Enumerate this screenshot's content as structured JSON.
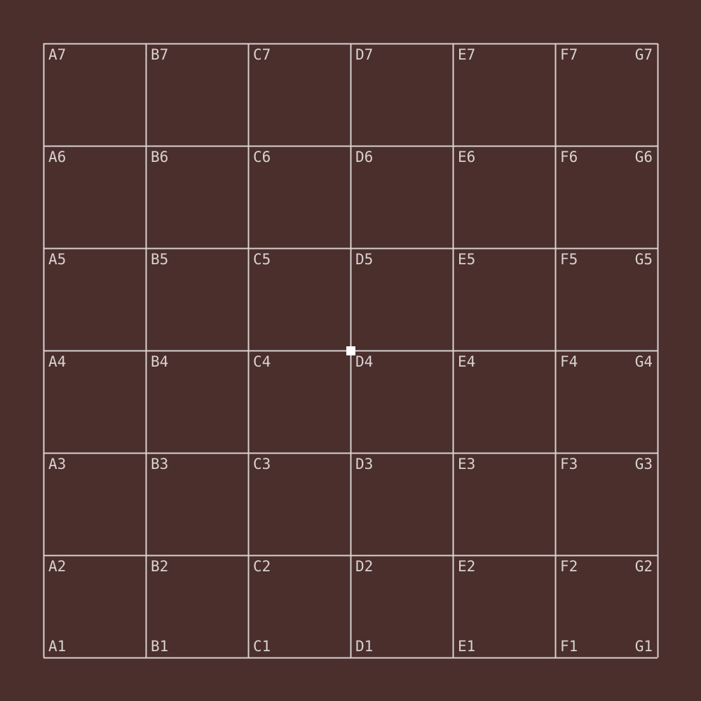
{
  "board": {
    "columns": [
      "A",
      "B",
      "C",
      "D",
      "E",
      "F",
      "G"
    ],
    "rows": [
      "7",
      "6",
      "5",
      "4",
      "3",
      "2",
      "1"
    ],
    "colors": {
      "background": "#4a2f2d",
      "grid_line": "#d8d2d0",
      "label": "#d8d2d0",
      "marker": "#ffffff"
    },
    "marker": {
      "at_intersection": "D4"
    }
  }
}
